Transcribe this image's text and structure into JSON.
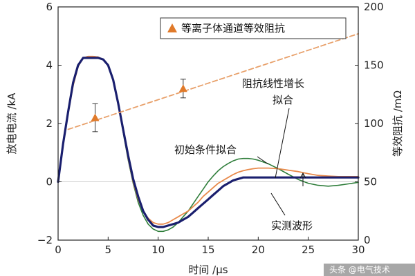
{
  "chart_data": {
    "type": "line",
    "xlabel": "时间 /μs",
    "ylabel": "放电电流 /kA",
    "y2label": "等效阻抗 /mΩ",
    "xlim": [
      0,
      30
    ],
    "ylim": [
      -2,
      6
    ],
    "y2lim": [
      0,
      200
    ],
    "x_ticks": [
      "0",
      "5",
      "10",
      "15",
      "20",
      "25",
      "30"
    ],
    "y_ticks": [
      "−2",
      "0",
      "2",
      "4",
      "6"
    ],
    "y2_ticks": [
      "0",
      "50",
      "100",
      "150",
      "200"
    ],
    "legend": {
      "label": "等离子体通道等效阻抗",
      "position": "top-right"
    },
    "annotations": {
      "linear_fit": [
        "阻抗线性增长",
        "拟合"
      ],
      "initial_fit": "初始条件拟合",
      "measured": "实测波形"
    },
    "series": [
      {
        "key": "measured",
        "axis": "left",
        "color": "#1a1f6e",
        "x": [
          0,
          0.5,
          1,
          1.5,
          2,
          2.5,
          3,
          3.5,
          4,
          4.5,
          5,
          5.5,
          6,
          6.5,
          7,
          7.5,
          8,
          8.5,
          9,
          9.5,
          10,
          10.5,
          11,
          11.5,
          12,
          12.5,
          13,
          13.5,
          14,
          14.5,
          15,
          15.5,
          16,
          16.5,
          17,
          17.5,
          18,
          18.5,
          19,
          19.5,
          20,
          21,
          22,
          23,
          24,
          25,
          26,
          27,
          28,
          29,
          30
        ],
        "y": [
          0,
          1.3,
          2.4,
          3.4,
          4.0,
          4.25,
          4.25,
          4.25,
          4.25,
          4.2,
          4.0,
          3.5,
          2.7,
          1.8,
          0.9,
          0.1,
          -0.5,
          -1.0,
          -1.3,
          -1.5,
          -1.55,
          -1.55,
          -1.5,
          -1.45,
          -1.4,
          -1.3,
          -1.2,
          -1.05,
          -0.9,
          -0.75,
          -0.6,
          -0.45,
          -0.3,
          -0.15,
          -0.05,
          0.05,
          0.1,
          0.15,
          0.15,
          0.15,
          0.15,
          0.15,
          0.15,
          0.15,
          0.15,
          0.15,
          0.15,
          0.15,
          0.15,
          0.15,
          0.15
        ]
      },
      {
        "key": "linear_fit",
        "axis": "left",
        "color": "#e8894a",
        "x": [
          0,
          0.5,
          1,
          1.5,
          2,
          2.5,
          3,
          3.5,
          4,
          4.5,
          5,
          5.5,
          6,
          6.5,
          7,
          7.5,
          8,
          8.5,
          9,
          9.5,
          10,
          10.5,
          11,
          11.5,
          12,
          12.5,
          13,
          13.5,
          14,
          14.5,
          15,
          15.5,
          16,
          16.5,
          17,
          17.5,
          18,
          18.5,
          19,
          19.5,
          20,
          21,
          22,
          23,
          24,
          25,
          26,
          27,
          28,
          29,
          30
        ],
        "y": [
          0,
          1.25,
          2.35,
          3.3,
          3.95,
          4.25,
          4.3,
          4.3,
          4.28,
          4.2,
          4.0,
          3.5,
          2.7,
          1.75,
          0.8,
          0.0,
          -0.6,
          -1.0,
          -1.25,
          -1.4,
          -1.45,
          -1.45,
          -1.4,
          -1.3,
          -1.2,
          -1.1,
          -1.0,
          -0.85,
          -0.7,
          -0.5,
          -0.35,
          -0.2,
          -0.05,
          0.05,
          0.15,
          0.25,
          0.33,
          0.38,
          0.42,
          0.45,
          0.47,
          0.47,
          0.45,
          0.4,
          0.35,
          0.28,
          0.22,
          0.2,
          0.18,
          0.18,
          0.18
        ]
      },
      {
        "key": "initial_fit",
        "axis": "left",
        "color": "#2e7d3a",
        "x": [
          0,
          0.5,
          1,
          1.5,
          2,
          2.5,
          3,
          3.5,
          4,
          4.5,
          5,
          5.5,
          6,
          6.5,
          7,
          7.5,
          8,
          8.5,
          9,
          9.5,
          10,
          10.5,
          11,
          11.5,
          12,
          12.5,
          13,
          13.5,
          14,
          14.5,
          15,
          15.5,
          16,
          16.5,
          17,
          17.5,
          18,
          18.5,
          19,
          19.5,
          20,
          21,
          22,
          23,
          24,
          25,
          26,
          27,
          28,
          29,
          30
        ],
        "y": [
          0,
          1.25,
          2.35,
          3.3,
          3.95,
          4.25,
          4.3,
          4.3,
          4.28,
          4.2,
          4.0,
          3.5,
          2.7,
          1.7,
          0.75,
          -0.05,
          -0.7,
          -1.15,
          -1.45,
          -1.62,
          -1.7,
          -1.7,
          -1.65,
          -1.55,
          -1.4,
          -1.2,
          -1.0,
          -0.75,
          -0.5,
          -0.25,
          0.0,
          0.2,
          0.38,
          0.52,
          0.63,
          0.72,
          0.78,
          0.8,
          0.8,
          0.78,
          0.74,
          0.62,
          0.45,
          0.26,
          0.08,
          -0.05,
          -0.12,
          -0.15,
          -0.12,
          -0.07,
          -0.02
        ]
      },
      {
        "key": "impedance_fit",
        "axis": "right",
        "color": "#e8a06a",
        "dashed": true,
        "x": [
          1,
          30
        ],
        "y": [
          95,
          177
        ]
      }
    ],
    "points": {
      "key": "impedance",
      "axis": "right",
      "color": "#e07a2a",
      "x": [
        3.7,
        12.5
      ],
      "y": [
        105,
        130
      ],
      "err": [
        12,
        8
      ]
    }
  },
  "watermark": "头条 @电气技术"
}
